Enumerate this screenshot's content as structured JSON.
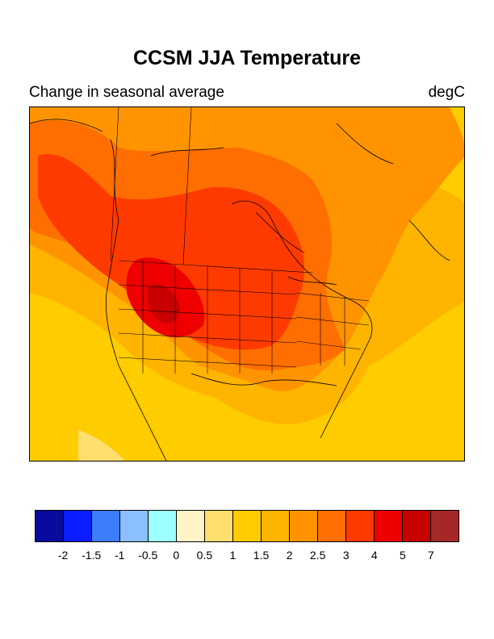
{
  "title": "CCSM JJA Temperature",
  "subtitle_left": "Change in seasonal average",
  "subtitle_right": "degC",
  "map": {
    "region": "North America",
    "field": "JJA temperature change"
  },
  "colorbar": {
    "colors": [
      "#0a0a9e",
      "#0a1eff",
      "#3d7dff",
      "#8bbfff",
      "#9effff",
      "#fff4c8",
      "#ffdf6e",
      "#ffcc00",
      "#ffb400",
      "#ff9400",
      "#ff6e00",
      "#ff3a00",
      "#ee0000",
      "#c80000",
      "#a52828"
    ],
    "labels": [
      "-2",
      "-1.5",
      "-1",
      "-0.5",
      "0",
      "0.5",
      "1",
      "1.5",
      "2",
      "2.5",
      "3",
      "4",
      "5",
      "7"
    ]
  }
}
